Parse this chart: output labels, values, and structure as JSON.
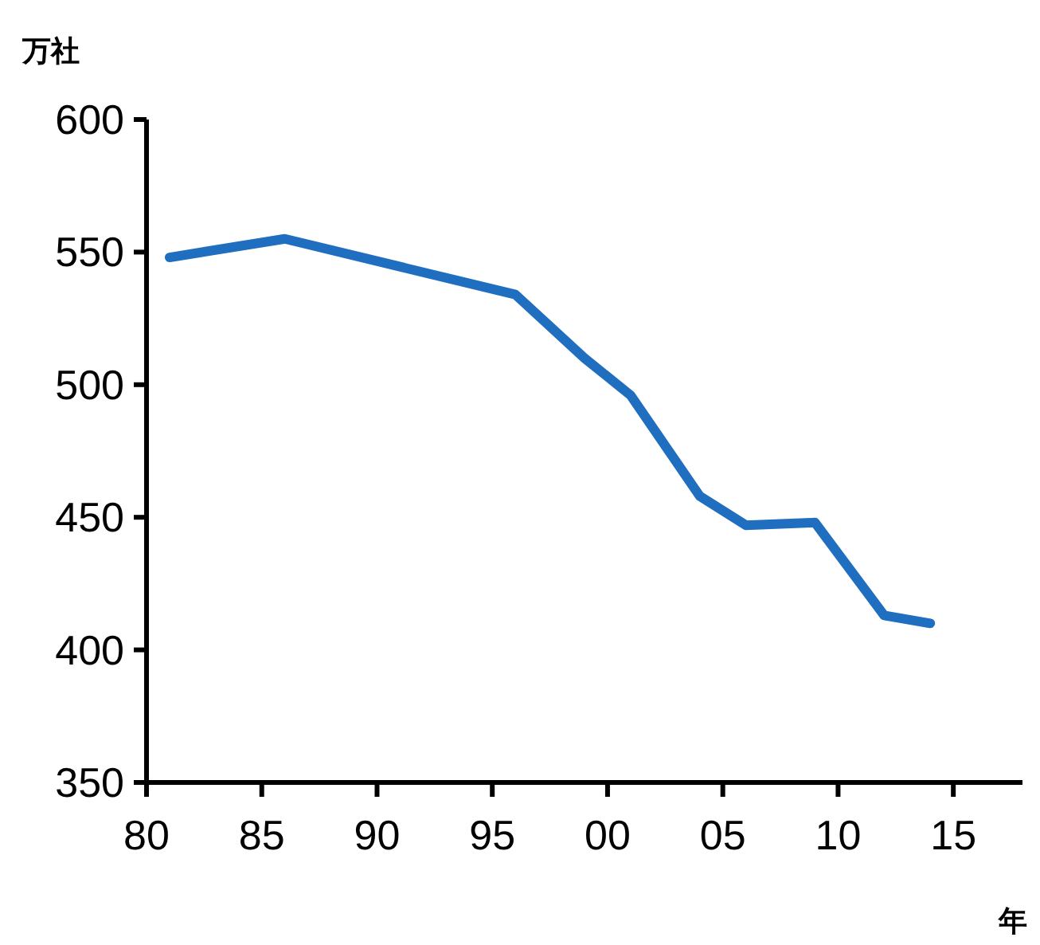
{
  "chart_data": {
    "type": "line",
    "ylabel": "万社",
    "xlabel": "年",
    "x": [
      1981,
      1986,
      1996,
      1999,
      2001,
      2004,
      2006,
      2009,
      2012,
      2014
    ],
    "series": [
      {
        "color": "#1f6ebf",
        "values": [
          548,
          555,
          534,
          510,
          496,
          458,
          447,
          448,
          413,
          410
        ]
      }
    ],
    "xlim": [
      1980,
      2018
    ],
    "xticks": [
      {
        "value": 1980,
        "label": "80"
      },
      {
        "value": 1985,
        "label": "85"
      },
      {
        "value": 1990,
        "label": "90"
      },
      {
        "value": 1995,
        "label": "95"
      },
      {
        "value": 2000,
        "label": "00"
      },
      {
        "value": 2005,
        "label": "05"
      },
      {
        "value": 2010,
        "label": "10"
      },
      {
        "value": 2015,
        "label": "15"
      }
    ],
    "ylim": [
      350,
      600
    ],
    "yticks": [
      350,
      400,
      450,
      500,
      550,
      600
    ],
    "grid": false,
    "marker": "none",
    "line_style": "solid"
  }
}
